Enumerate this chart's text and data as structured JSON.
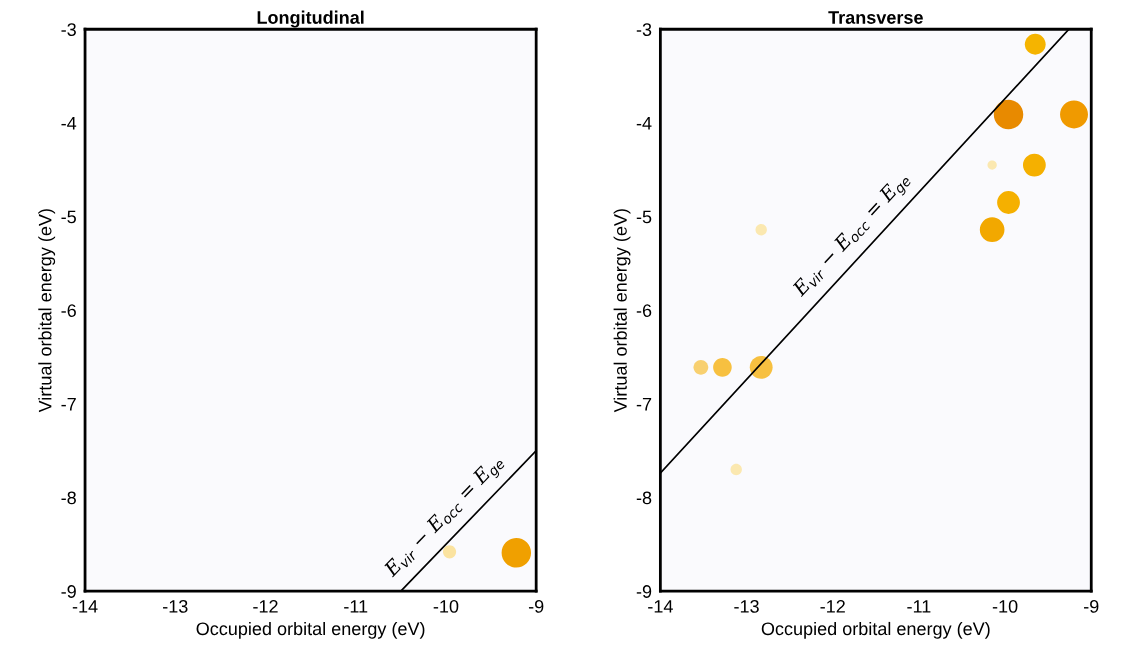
{
  "chart_data": [
    {
      "type": "bubble",
      "title": "Longitudinal",
      "xlabel": "Occupied orbital energy (eV)",
      "ylabel": "Virtual orbital energy (eV)",
      "xlim": [
        -14,
        -9
      ],
      "ylim": [
        -9,
        -3
      ],
      "xticks": [
        -14,
        -13,
        -12,
        -11,
        -10,
        -9
      ],
      "yticks": [
        -9,
        -8,
        -7,
        -6,
        -5,
        -4,
        -3
      ],
      "series": [
        {
          "x": [
            -9.22,
            -9.96
          ],
          "values": [
            -8.59,
            -8.58
          ],
          "sizes": [
            1,
            0.2
          ],
          "colors": [
            "#f0a000",
            "#fbe3a0"
          ]
        },
        {
          "type": "line",
          "x": [
            -10.5,
            -9
          ],
          "values": [
            -9,
            -7.5
          ],
          "color": "#000000"
        }
      ],
      "annotations": [
        {
          "text": "E$_{vir}$ − E$_{occ}$ = E$_{ge}$",
          "x": -9.85,
          "y": -8.35
        }
      ]
    },
    {
      "type": "bubble",
      "title": "Transverse",
      "xlabel": "Occupied orbital energy (eV)",
      "ylabel": "Virtual orbital energy (eV)",
      "xlim": [
        -14,
        -9
      ],
      "ylim": [
        -9,
        -3
      ],
      "xticks": [
        -14,
        -13,
        -12,
        -11,
        -10,
        -9
      ],
      "yticks": [
        -9,
        -8,
        -7,
        -6,
        -5,
        -4,
        -3
      ],
      "series": [
        {
          "x": [
            -9.96,
            -9.2,
            -9.65,
            -10.15,
            -9.66,
            -9.96,
            -10.15,
            -12.83,
            -13.53,
            -13.28,
            -12.83,
            -13.12
          ],
          "values": [
            -3.91,
            -3.91,
            -3.16,
            -4.45,
            -4.45,
            -4.85,
            -5.14,
            -5.14,
            -6.61,
            -6.61,
            -6.61,
            -7.7
          ],
          "sizes": [
            1,
            0.9,
            0.5,
            0.1,
            0.6,
            0.6,
            0.7,
            0.15,
            0.25,
            0.4,
            0.6,
            0.15
          ],
          "colors": [
            "#e88a00",
            "#f09a00",
            "#f5b400",
            "#fbe8b0",
            "#f5b000",
            "#f5b000",
            "#f2a800",
            "#fbe8b0",
            "#f8d070",
            "#f7c040",
            "#f7c040",
            "#fbe8b0"
          ]
        },
        {
          "type": "line",
          "x": [
            -14,
            -9.26
          ],
          "values": [
            -7.74,
            -3
          ],
          "color": "#000000"
        }
      ],
      "annotations": [
        {
          "text": "E$_{vir}$ − E$_{occ}$ = E$_{ge}$",
          "x": -11.6,
          "y": -5.34
        }
      ]
    }
  ]
}
